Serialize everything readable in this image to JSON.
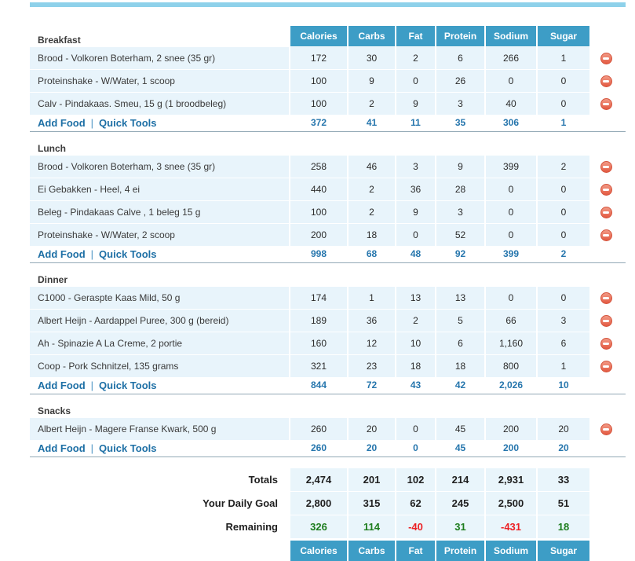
{
  "colors": {
    "top_bar": "#8ed1ea",
    "header_blue": "#3d9dc6",
    "row_light_blue": "#e8f4fb",
    "meal_title_orange": "#f7941d",
    "link_blue": "#1d6fa5",
    "totals_blue": "#2676ad",
    "remaining_green": "#1e7d1e",
    "remaining_red": "#ec2024",
    "delete_icon_red": "#e35a42"
  },
  "table": {
    "columns": [
      "Calories",
      "Carbs",
      "Fat",
      "Protein",
      "Sodium",
      "Sugar"
    ],
    "add_food_label": "Add Food",
    "quick_tools_label": "Quick Tools",
    "link_separator": "|",
    "delete_icon": "minus-circle-icon"
  },
  "meals": [
    {
      "name": "Breakfast",
      "show_header": true,
      "items": [
        {
          "desc": "Brood - Volkoren Boterham, 2 snee (35 gr)",
          "values": [
            "172",
            "30",
            "2",
            "6",
            "266",
            "1"
          ]
        },
        {
          "desc": "Proteinshake - W/Water, 1 scoop",
          "values": [
            "100",
            "9",
            "0",
            "26",
            "0",
            "0"
          ]
        },
        {
          "desc": "Calv - Pindakaas. Smeu, 15 g (1 broodbeleg)",
          "values": [
            "100",
            "2",
            "9",
            "3",
            "40",
            "0"
          ]
        }
      ],
      "totals": [
        "372",
        "41",
        "11",
        "35",
        "306",
        "1"
      ]
    },
    {
      "name": "Lunch",
      "show_header": false,
      "items": [
        {
          "desc": "Brood - Volkoren Boterham, 3 snee (35 gr)",
          "values": [
            "258",
            "46",
            "3",
            "9",
            "399",
            "2"
          ]
        },
        {
          "desc": "Ei Gebakken - Heel, 4 ei",
          "values": [
            "440",
            "2",
            "36",
            "28",
            "0",
            "0"
          ]
        },
        {
          "desc": "Beleg - Pindakaas Calve , 1 beleg 15 g",
          "values": [
            "100",
            "2",
            "9",
            "3",
            "0",
            "0"
          ]
        },
        {
          "desc": "Proteinshake - W/Water, 2 scoop",
          "values": [
            "200",
            "18",
            "0",
            "52",
            "0",
            "0"
          ]
        }
      ],
      "totals": [
        "998",
        "68",
        "48",
        "92",
        "399",
        "2"
      ]
    },
    {
      "name": "Dinner",
      "show_header": false,
      "items": [
        {
          "desc": "C1000 - Geraspte Kaas Mild, 50 g",
          "values": [
            "174",
            "1",
            "13",
            "13",
            "0",
            "0"
          ]
        },
        {
          "desc": "Albert Heijn - Aardappel Puree, 300 g (bereid)",
          "values": [
            "189",
            "36",
            "2",
            "5",
            "66",
            "3"
          ]
        },
        {
          "desc": "Ah - Spinazie A La Creme, 2 portie",
          "values": [
            "160",
            "12",
            "10",
            "6",
            "1,160",
            "6"
          ]
        },
        {
          "desc": "Coop - Pork Schnitzel, 135 grams",
          "values": [
            "321",
            "23",
            "18",
            "18",
            "800",
            "1"
          ]
        }
      ],
      "totals": [
        "844",
        "72",
        "43",
        "42",
        "2,026",
        "10"
      ]
    },
    {
      "name": "Snacks",
      "show_header": false,
      "items": [
        {
          "desc": "Albert Heijn - Magere Franse Kwark, 500 g",
          "values": [
            "260",
            "20",
            "0",
            "45",
            "200",
            "20"
          ]
        }
      ],
      "totals": [
        "260",
        "20",
        "0",
        "45",
        "200",
        "20"
      ]
    }
  ],
  "summary": {
    "rows": [
      {
        "label": "Totals",
        "values": [
          "2,474",
          "201",
          "102",
          "214",
          "2,931",
          "33"
        ],
        "value_colors": [
          "",
          "",
          "",
          "",
          "",
          ""
        ]
      },
      {
        "label": "Your Daily Goal",
        "values": [
          "2,800",
          "315",
          "62",
          "245",
          "2,500",
          "51"
        ],
        "value_colors": [
          "",
          "",
          "",
          "",
          "",
          ""
        ]
      },
      {
        "label": "Remaining",
        "values": [
          "326",
          "114",
          "-40",
          "31",
          "-431",
          "18"
        ],
        "value_colors": [
          "green",
          "green",
          "red",
          "green",
          "red",
          "green"
        ]
      }
    ],
    "footer_columns": [
      "Calories",
      "Carbs",
      "Fat",
      "Protein",
      "Sodium",
      "Sugar"
    ]
  }
}
